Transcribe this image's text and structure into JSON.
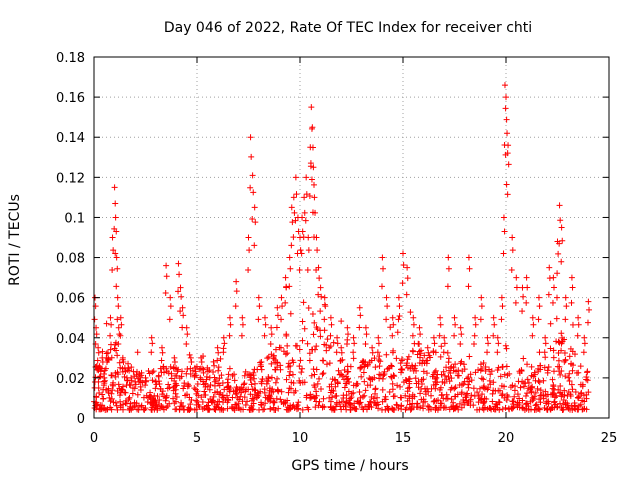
{
  "chart_data": {
    "type": "scatter",
    "title": "Day 046 of 2022, Rate Of TEC Index for receiver chti",
    "xlabel": "GPS time / hours",
    "ylabel": "ROTI / TECUs",
    "xlim": [
      0,
      25
    ],
    "ylim": [
      0,
      0.18
    ],
    "xticks": [
      0,
      5,
      10,
      15,
      20,
      25
    ],
    "xtick_labels": [
      "0",
      "5",
      "10",
      "15",
      "20",
      "25"
    ],
    "yticks": [
      0,
      0.02,
      0.04,
      0.06,
      0.08,
      0.1,
      0.12,
      0.14,
      0.16,
      0.18
    ],
    "ytick_labels": [
      "0",
      "0.02",
      "0.04",
      "0.06",
      "0.08",
      "0.1",
      "0.12",
      "0.14",
      "0.16",
      "0.18"
    ],
    "grid": true,
    "marker": "+",
    "color": "#ff0000",
    "series": [
      {
        "name": "ROTI",
        "note": "dense band of points ~0.003-0.03 over 0-24 h; highlighted points listed below",
        "x": [
          0.05,
          0.1,
          0.2,
          0.3,
          0.4,
          0.5,
          0.6,
          0.8,
          0.9,
          1.0,
          1.05,
          1.1,
          1.15,
          1.2,
          1.3,
          1.4,
          1.5,
          1.6,
          1.8,
          2.0,
          2.2,
          2.5,
          2.8,
          3.0,
          3.3,
          3.5,
          3.7,
          3.9,
          4.1,
          4.2,
          4.3,
          4.5,
          4.7,
          4.9,
          5.2,
          5.5,
          5.8,
          6.0,
          6.3,
          6.6,
          6.9,
          7.2,
          7.5,
          7.6,
          7.7,
          7.8,
          8.0,
          8.3,
          8.6,
          8.9,
          9.1,
          9.3,
          9.5,
          9.6,
          9.7,
          9.8,
          9.9,
          10.0,
          10.1,
          10.2,
          10.3,
          10.4,
          10.5,
          10.55,
          10.6,
          10.65,
          10.7,
          10.8,
          10.9,
          11.0,
          11.2,
          11.5,
          11.8,
          12.0,
          12.3,
          12.6,
          12.9,
          13.2,
          13.5,
          13.8,
          14.0,
          14.2,
          14.5,
          14.8,
          15.0,
          15.2,
          15.5,
          15.8,
          16.2,
          16.5,
          16.8,
          17.0,
          17.2,
          17.5,
          17.8,
          18.2,
          18.5,
          18.8,
          19.1,
          19.4,
          19.6,
          19.8,
          19.9,
          19.95,
          20.0,
          20.05,
          20.1,
          20.3,
          20.5,
          20.8,
          21.0,
          21.3,
          21.6,
          21.9,
          22.1,
          22.3,
          22.5,
          22.6,
          22.7,
          22.9,
          23.2,
          23.5,
          23.8,
          24.0
        ],
        "y": [
          0.06,
          0.045,
          0.035,
          0.025,
          0.03,
          0.02,
          0.03,
          0.05,
          0.09,
          0.115,
          0.1,
          0.08,
          0.06,
          0.045,
          0.05,
          0.03,
          0.025,
          0.02,
          0.02,
          0.018,
          0.022,
          0.02,
          0.04,
          0.018,
          0.035,
          0.076,
          0.06,
          0.03,
          0.077,
          0.065,
          0.055,
          0.045,
          0.03,
          0.025,
          0.03,
          0.025,
          0.028,
          0.035,
          0.04,
          0.05,
          0.068,
          0.05,
          0.09,
          0.14,
          0.121,
          0.105,
          0.06,
          0.05,
          0.045,
          0.055,
          0.06,
          0.07,
          0.08,
          0.105,
          0.11,
          0.12,
          0.1,
          0.09,
          0.1,
          0.11,
          0.12,
          0.09,
          0.135,
          0.155,
          0.145,
          0.125,
          0.11,
          0.09,
          0.075,
          0.065,
          0.06,
          0.05,
          0.04,
          0.035,
          0.045,
          0.04,
          0.055,
          0.045,
          0.035,
          0.04,
          0.08,
          0.06,
          0.05,
          0.06,
          0.082,
          0.075,
          0.05,
          0.045,
          0.035,
          0.04,
          0.05,
          0.04,
          0.08,
          0.05,
          0.045,
          0.08,
          0.05,
          0.06,
          0.04,
          0.05,
          0.04,
          0.06,
          0.1,
          0.166,
          0.16,
          0.142,
          0.136,
          0.09,
          0.07,
          0.065,
          0.07,
          0.05,
          0.06,
          0.04,
          0.075,
          0.07,
          0.088,
          0.106,
          0.095,
          0.06,
          0.07,
          0.05,
          0.04,
          0.058
        ]
      }
    ]
  }
}
